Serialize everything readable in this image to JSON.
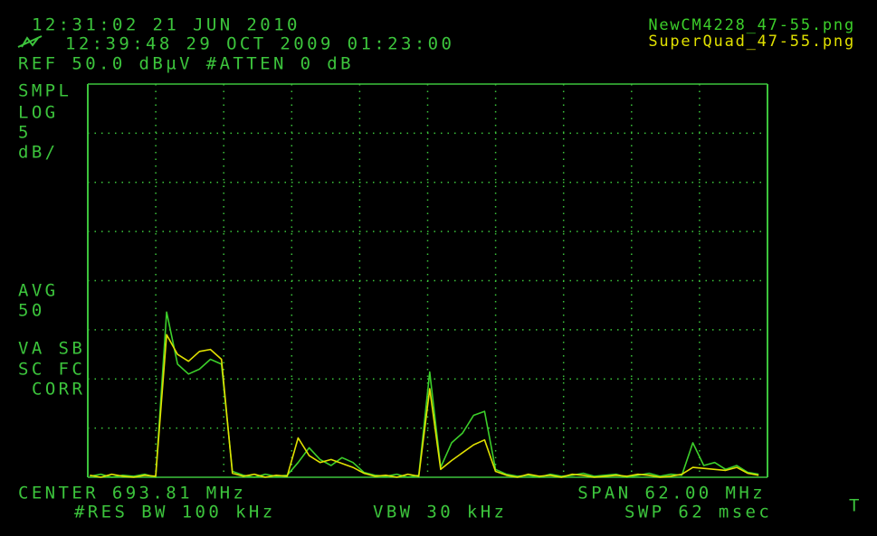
{
  "screen": {
    "line1": "12:31:02  21 JUN 2010",
    "line2": "12:39:48  29 OCT 2009 01:23:00",
    "line3": "REF 50.0 dBµV #ATTEN 0 dB",
    "side": [
      "SMPL",
      "LOG",
      "5",
      "dB/",
      "AVG",
      "50",
      "VA SB",
      "SC FC",
      "CORR"
    ],
    "center": "CENTER 693.81 MHz",
    "span": "SPAN 62.00 MHz",
    "rbw": "#RES BW 100 kHz",
    "vbw": "VBW 30 kHz",
    "swp": "SWP 62 msec",
    "corner": "T"
  },
  "chart_data": {
    "type": "line",
    "xlim": [
      662.81,
      724.81
    ],
    "ylim": [
      10,
      50
    ],
    "xticks": [
      662.81,
      669.01,
      675.21,
      681.41,
      687.61,
      693.81,
      700.01,
      706.21,
      712.41,
      718.61,
      724.81
    ],
    "yticks": [
      10,
      15,
      20,
      25,
      30,
      35,
      40,
      45,
      50
    ],
    "grid": true,
    "legend": "top-right",
    "x": [
      663,
      664,
      665,
      666,
      667,
      668,
      669,
      670,
      671,
      672,
      673,
      674,
      675,
      676,
      677,
      678,
      679,
      680,
      681,
      682,
      683,
      684,
      685,
      686,
      687,
      688,
      689,
      690,
      691,
      692,
      693,
      694,
      695,
      696,
      697,
      698,
      699,
      700,
      701,
      702,
      703,
      704,
      705,
      706,
      707,
      708,
      709,
      710,
      711,
      712,
      713,
      714,
      715,
      716,
      717,
      718,
      719,
      720,
      721,
      722,
      723,
      724
    ],
    "series": [
      {
        "name": "NewCM4228_47-55.png",
        "color": "#3ccf2a",
        "values": [
          10.1,
          10.3,
          10.0,
          10.2,
          10.1,
          10.3,
          10.0,
          26.8,
          21.5,
          20.5,
          21.0,
          22.0,
          21.5,
          10.6,
          10.2,
          10.0,
          10.3,
          10.1,
          10.2,
          11.5,
          13.0,
          11.8,
          11.2,
          12.0,
          11.5,
          10.5,
          10.2,
          10.1,
          10.3,
          10.0,
          10.2,
          20.7,
          11.0,
          13.5,
          14.5,
          16.3,
          16.7,
          10.8,
          10.3,
          10.1,
          10.2,
          10.0,
          10.3,
          10.1,
          10.2,
          10.4,
          10.1,
          10.2,
          10.3,
          10.0,
          10.2,
          10.4,
          10.1,
          10.3,
          10.2,
          13.5,
          11.2,
          11.5,
          10.8,
          11.2,
          10.5,
          10.3
        ]
      },
      {
        "name": "SuperQuad_47-55.png",
        "color": "#e0e000",
        "values": [
          10.2,
          10.0,
          10.3,
          10.1,
          10.0,
          10.2,
          10.1,
          24.5,
          22.5,
          21.8,
          22.8,
          23.0,
          22.0,
          10.4,
          10.1,
          10.3,
          10.0,
          10.2,
          10.1,
          14.0,
          12.2,
          11.5,
          11.8,
          11.4,
          11.0,
          10.4,
          10.1,
          10.2,
          10.0,
          10.3,
          10.1,
          19.0,
          10.8,
          11.7,
          12.5,
          13.3,
          13.8,
          10.6,
          10.2,
          10.0,
          10.3,
          10.1,
          10.2,
          10.0,
          10.3,
          10.2,
          10.0,
          10.1,
          10.2,
          10.1,
          10.3,
          10.2,
          10.0,
          10.1,
          10.3,
          11.0,
          10.9,
          10.8,
          10.7,
          11.0,
          10.4,
          10.2
        ]
      }
    ]
  }
}
